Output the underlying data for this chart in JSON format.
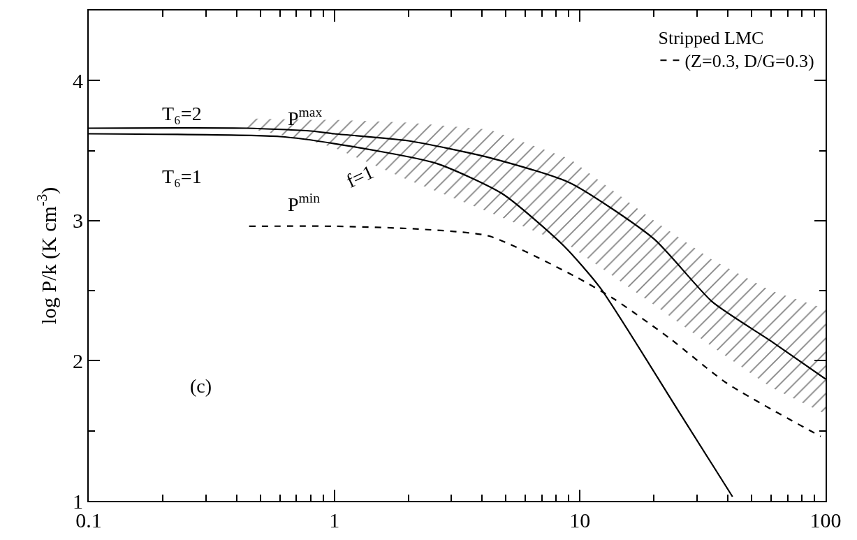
{
  "chart_data": {
    "type": "line",
    "ylabel": "log P/k (K cm$^{-3}$)",
    "log": "x",
    "legend": "top right",
    "legend_title": "Stripped LMC",
    "xlim": [
      0.1,
      100
    ],
    "xticks": [
      0.1,
      {
        "value": 0.2,
        "label": null
      },
      {
        "value": 0.3,
        "label": null
      },
      {
        "value": 0.4,
        "label": null
      },
      {
        "value": 0.5,
        "label": null
      },
      {
        "value": 0.6,
        "label": null
      },
      {
        "value": 0.7,
        "label": null
      },
      {
        "value": 0.8,
        "label": null
      },
      {
        "value": 0.9,
        "label": null
      },
      1,
      {
        "value": 2,
        "label": null
      },
      {
        "value": 3,
        "label": null
      },
      {
        "value": 4,
        "label": null
      },
      {
        "value": 5,
        "label": null
      },
      {
        "value": 6,
        "label": null
      },
      {
        "value": 7,
        "label": null
      },
      {
        "value": 8,
        "label": null
      },
      {
        "value": 9,
        "label": null
      },
      10,
      {
        "value": 20,
        "label": null
      },
      {
        "value": 30,
        "label": null
      },
      {
        "value": 40,
        "label": null
      },
      {
        "value": 50,
        "label": null
      },
      {
        "value": 60,
        "label": null
      },
      {
        "value": 70,
        "label": null
      },
      {
        "value": 80,
        "label": null
      },
      {
        "value": 90,
        "label": null
      },
      100
    ],
    "ylim": [
      1,
      4.5
    ],
    "yticks": [
      1,
      {
        "value": 1.5,
        "label": null
      },
      2,
      {
        "value": 2.5,
        "label": null
      },
      3,
      {
        "value": 3.5,
        "label": null
      },
      4
    ],
    "series": [
      {
        "color": "#000000",
        "line_style": "solid",
        "x": [
          0.1,
          0.44,
          0.8,
          1,
          2,
          4.27,
          9.1,
          20,
          34.6,
          60,
          100
        ],
        "values": [
          3.66,
          3.66,
          3.64,
          3.62,
          3.57,
          3.45,
          3.27,
          2.87,
          2.42,
          2.14,
          1.87
        ],
        "lower": [
          null,
          3.66,
          3.57,
          3.52,
          3.29,
          3.06,
          2.82,
          2.4,
          2.1,
          1.81,
          1.62
        ],
        "upper": [
          null,
          3.73,
          3.72,
          3.72,
          3.7,
          3.65,
          3.44,
          3.0,
          2.72,
          2.5,
          2.37
        ]
      },
      {
        "color": "#000000",
        "line_style": "solid",
        "x": [
          0.1,
          0.6,
          1,
          2.59,
          4.85,
          8.6,
          12.1,
          25,
          41.8
        ],
        "values": [
          3.62,
          3.6,
          3.55,
          3.41,
          3.19,
          2.82,
          2.52,
          1.65,
          1.03
        ]
      },
      {
        "name": "(Z=0.3, D/G=0.3)",
        "color": "#000000",
        "line_style": "dashed",
        "x": [
          0.45,
          1,
          2.2,
          4.27,
          9.6,
          13.8,
          23.2,
          39.6,
          95.5
        ],
        "values": [
          2.96,
          2.96,
          2.94,
          2.89,
          2.6,
          2.44,
          2.16,
          1.84,
          1.46
        ]
      }
    ],
    "annotations": [
      "T₆=2",
      "T₆=1",
      "P$^{max}$",
      "P$^{min}$",
      "f=1",
      "(c)"
    ]
  }
}
